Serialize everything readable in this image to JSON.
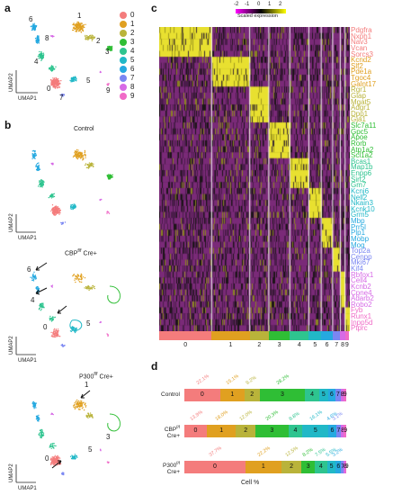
{
  "panels": {
    "a": "a",
    "b": "b",
    "c": "c",
    "d": "d"
  },
  "colors": {
    "0": "#f47c7c",
    "1": "#e0a020",
    "2": "#b9b33a",
    "3": "#2fbe35",
    "4": "#2ec48f",
    "5": "#21b8c7",
    "6": "#25a9e0",
    "7": "#7a86f2",
    "8": "#d76ae6",
    "9": "#f06bc7"
  },
  "legend": [
    "0",
    "1",
    "2",
    "3",
    "4",
    "5",
    "6",
    "7",
    "8",
    "9"
  ],
  "umap": {
    "x": "UMAP1",
    "y": "UMAP2"
  },
  "panel_a_labels": [
    "1",
    "6",
    "2",
    "3",
    "8",
    "4",
    "5",
    "0",
    "7",
    "9"
  ],
  "conditions": {
    "control": "Control",
    "cbp_main": "CBP",
    "cbp_sup": "f/f",
    "cbp_tail": " Cre+",
    "p300_main": "P300",
    "p300_sup": "f/f",
    "p300_tail": " Cre+"
  },
  "cbp_labels": [
    "6",
    "4",
    "0",
    "5"
  ],
  "p300_labels": [
    "1",
    "3",
    "0",
    "5"
  ],
  "heatmap": {
    "scale_ticks": [
      "-2",
      "-1",
      "0",
      "1",
      "2"
    ],
    "scale_title": "Scaled expression",
    "x_labels": [
      "0",
      "1",
      "2",
      "3",
      "4",
      "5",
      "6",
      "7",
      "8",
      "9"
    ]
  },
  "genes": [
    {
      "name": "Pdgfra",
      "c": "0"
    },
    {
      "name": "Nxph1",
      "c": "0"
    },
    {
      "name": "Nav3",
      "c": "0"
    },
    {
      "name": "Vcan",
      "c": "0"
    },
    {
      "name": "Sorcs3",
      "c": "0"
    },
    {
      "name": "Kcnd2",
      "c": "1"
    },
    {
      "name": "Slf2",
      "c": "1"
    },
    {
      "name": "Pde1a",
      "c": "1"
    },
    {
      "name": "Tgoc4",
      "c": "1"
    },
    {
      "name": "Galnt17",
      "c": "1"
    },
    {
      "name": "Rgr1",
      "c": "2"
    },
    {
      "name": "Glap",
      "c": "2"
    },
    {
      "name": "Mgat5",
      "c": "2"
    },
    {
      "name": "Adgr1",
      "c": "2"
    },
    {
      "name": "Dpp1",
      "c": "2"
    },
    {
      "name": "Gja1",
      "c": "2"
    },
    {
      "name": "Slc7a11",
      "c": "3"
    },
    {
      "name": "Gpc5",
      "c": "3"
    },
    {
      "name": "Apoe",
      "c": "3"
    },
    {
      "name": "Rorb",
      "c": "3"
    },
    {
      "name": "Atp1a2",
      "c": "3"
    },
    {
      "name": "Scl1a2",
      "c": "3"
    },
    {
      "name": "Bcas1",
      "c": "4"
    },
    {
      "name": "Map1b",
      "c": "4"
    },
    {
      "name": "Enpp6",
      "c": "4"
    },
    {
      "name": "Sirt2",
      "c": "4"
    },
    {
      "name": "Gm7",
      "c": "4"
    },
    {
      "name": "Kcnj6",
      "c": "5"
    },
    {
      "name": "Nell2",
      "c": "5"
    },
    {
      "name": "Nkain3",
      "c": "5"
    },
    {
      "name": "Kcnk10",
      "c": "5"
    },
    {
      "name": "Grm5",
      "c": "5"
    },
    {
      "name": "Mbp",
      "c": "6"
    },
    {
      "name": "Prr5l",
      "c": "6"
    },
    {
      "name": "Plp1",
      "c": "6"
    },
    {
      "name": "Mobp",
      "c": "6"
    },
    {
      "name": "Mog",
      "c": "6"
    },
    {
      "name": "Top2a",
      "c": "7"
    },
    {
      "name": "Cenpp",
      "c": "7"
    },
    {
      "name": "Mki67",
      "c": "7"
    },
    {
      "name": "Kif4",
      "c": "7"
    },
    {
      "name": "Rbfox1",
      "c": "8"
    },
    {
      "name": "Cell4",
      "c": "8"
    },
    {
      "name": "Kcnb2",
      "c": "8"
    },
    {
      "name": "Cpne4",
      "c": "8"
    },
    {
      "name": "Adarb2",
      "c": "8"
    },
    {
      "name": "Robo2",
      "c": "8"
    },
    {
      "name": "Fyb",
      "c": "9"
    },
    {
      "name": "Runx1",
      "c": "9"
    },
    {
      "name": "Inpp5d",
      "c": "9"
    },
    {
      "name": "Ptprc",
      "c": "9"
    }
  ],
  "stacked_bar": {
    "xlabel": "Cell %",
    "rows": [
      {
        "label": "Control",
        "label_sup": "",
        "label2": "",
        "values": [
          22.1,
          15.1,
          9.2,
          28.2,
          8.7,
          5.4,
          4.6,
          3.2,
          1.7,
          1.8
        ],
        "pct_labels": [
          "22.1%",
          "15.1%",
          "9.2%",
          "28.2%",
          "",
          "",
          "",
          "",
          "",
          ""
        ]
      },
      {
        "label": "CBP",
        "label_sup": "f/f",
        "label2": "Cre+",
        "values": [
          13.9,
          18.0,
          12.0,
          20.3,
          8.8,
          16.1,
          4.6,
          3.1,
          1.6,
          1.6
        ],
        "pct_labels": [
          "13.9%",
          "18.0%",
          "12.0%",
          "20.3%",
          "8.8%",
          "16.1%",
          "4.6%",
          "3.1%",
          "",
          ""
        ]
      },
      {
        "label": "P300",
        "label_sup": "f/f",
        "label2": "Cre+",
        "values": [
          37.7,
          22.2,
          12.5,
          8.2,
          7.5,
          5.5,
          3.2,
          1.5,
          1.0,
          0.7
        ],
        "pct_labels": [
          "37.7%",
          "22.2%",
          "12.5%",
          "8.2%",
          "7.5%",
          "5.5%",
          "3.2%",
          "",
          "",
          ""
        ]
      }
    ],
    "seg_text": [
      "0",
      "1",
      "2",
      "3",
      "4",
      "5",
      "6",
      "7",
      "8",
      "9"
    ]
  }
}
